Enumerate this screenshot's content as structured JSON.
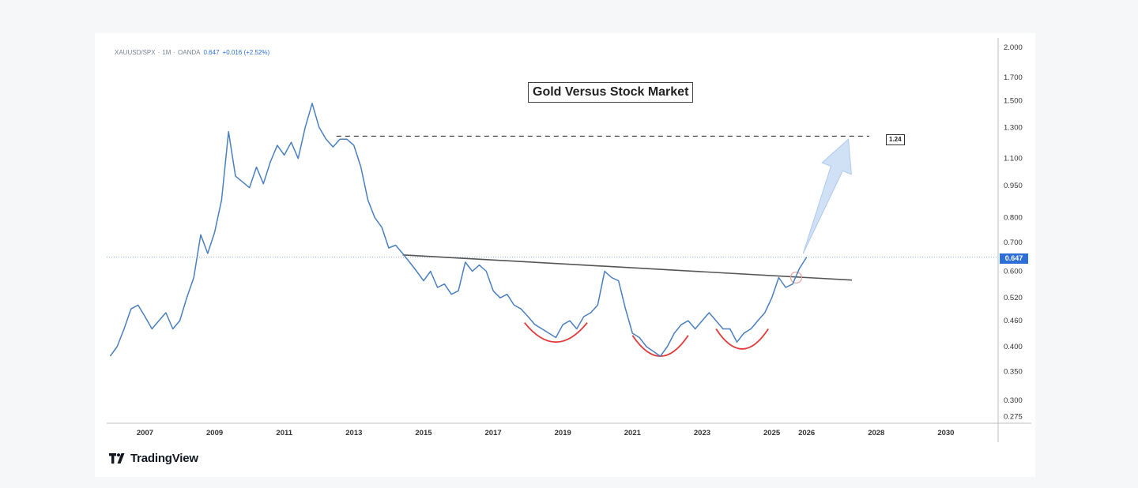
{
  "header": {
    "symbol": "XAUUSD/SPX",
    "interval": "1M",
    "source": "OANDA",
    "value": "0.647",
    "change": "+0.016 (+2.52%)"
  },
  "branding": {
    "logo_text": "TradingView",
    "logo_glyph": "17"
  },
  "colors": {
    "line": "#4a7fbd",
    "cups": "#e03a3a",
    "trendline": "#555555",
    "accent": "#2d6fd6",
    "arrow": "#cfe0f5"
  },
  "chart_data": {
    "type": "line",
    "title": "Gold Versus Stock Market",
    "xlabel": "",
    "ylabel": "",
    "scale": "log",
    "ylim": [
      0.265,
      2.05
    ],
    "xlim": [
      2005.9,
      2031.5
    ],
    "x_ticks": [
      "2007",
      "2009",
      "2011",
      "2013",
      "2015",
      "2017",
      "2019",
      "2021",
      "2023",
      "2025",
      "2026",
      "2028",
      "2030"
    ],
    "x_tick_values": [
      2007,
      2009,
      2011,
      2013,
      2015,
      2017,
      2019,
      2021,
      2023,
      2025,
      2026,
      2028,
      2030
    ],
    "y_ticks": [
      "2.000",
      "1.700",
      "1.500",
      "1.300",
      "1.100",
      "0.950",
      "0.800",
      "0.700",
      "0.600",
      "0.520",
      "0.460",
      "0.400",
      "0.350",
      "0.300",
      "0.275"
    ],
    "y_tick_values": [
      2.0,
      1.7,
      1.5,
      1.3,
      1.1,
      0.95,
      0.8,
      0.7,
      0.6,
      0.52,
      0.46,
      0.4,
      0.35,
      0.3,
      0.275
    ],
    "last_price": {
      "value": 0.647,
      "label": "0.647"
    },
    "target": {
      "value": 1.24,
      "label": "1.24",
      "x_start": 2012.5,
      "x_end": 2027.8
    },
    "trendline": {
      "x": [
        2014.4,
        2027.3
      ],
      "y": [
        0.655,
        0.572
      ]
    },
    "projection_arrow": {
      "from": [
        2025.9,
        0.66
      ],
      "to": [
        2027.2,
        1.22
      ]
    },
    "breakout_marker": {
      "x": 2025.7,
      "y": 0.58
    },
    "cups": [
      {
        "x_start": 2017.9,
        "x_end": 2019.7,
        "bottom": 0.41,
        "rim": 0.455
      },
      {
        "x_start": 2021.0,
        "x_end": 2022.6,
        "bottom": 0.38,
        "rim": 0.425
      },
      {
        "x_start": 2023.4,
        "x_end": 2024.9,
        "bottom": 0.395,
        "rim": 0.44
      }
    ],
    "series": [
      {
        "name": "XAUUSD/SPX",
        "x": [
          2006.0,
          2006.2,
          2006.4,
          2006.6,
          2006.8,
          2007.0,
          2007.2,
          2007.4,
          2007.6,
          2007.8,
          2008.0,
          2008.2,
          2008.4,
          2008.6,
          2008.8,
          2009.0,
          2009.2,
          2009.4,
          2009.6,
          2009.8,
          2010.0,
          2010.2,
          2010.4,
          2010.6,
          2010.8,
          2011.0,
          2011.2,
          2011.4,
          2011.6,
          2011.8,
          2012.0,
          2012.2,
          2012.4,
          2012.6,
          2012.8,
          2013.0,
          2013.2,
          2013.4,
          2013.6,
          2013.8,
          2014.0,
          2014.2,
          2014.4,
          2014.6,
          2014.8,
          2015.0,
          2015.2,
          2015.4,
          2015.6,
          2015.8,
          2016.0,
          2016.2,
          2016.4,
          2016.6,
          2016.8,
          2017.0,
          2017.2,
          2017.4,
          2017.6,
          2017.8,
          2018.0,
          2018.2,
          2018.4,
          2018.6,
          2018.8,
          2019.0,
          2019.2,
          2019.4,
          2019.6,
          2019.8,
          2020.0,
          2020.2,
          2020.4,
          2020.6,
          2020.8,
          2021.0,
          2021.2,
          2021.4,
          2021.6,
          2021.8,
          2022.0,
          2022.2,
          2022.4,
          2022.6,
          2022.8,
          2023.0,
          2023.2,
          2023.4,
          2023.6,
          2023.8,
          2024.0,
          2024.2,
          2024.4,
          2024.6,
          2024.8,
          2025.0,
          2025.2,
          2025.4,
          2025.6,
          2025.8,
          2026.0
        ],
        "y": [
          0.38,
          0.4,
          0.44,
          0.49,
          0.5,
          0.47,
          0.44,
          0.46,
          0.48,
          0.44,
          0.46,
          0.52,
          0.58,
          0.73,
          0.66,
          0.74,
          0.88,
          1.27,
          1.0,
          0.97,
          0.94,
          1.05,
          0.96,
          1.08,
          1.18,
          1.12,
          1.2,
          1.1,
          1.3,
          1.48,
          1.3,
          1.22,
          1.17,
          1.22,
          1.22,
          1.18,
          1.05,
          0.88,
          0.8,
          0.76,
          0.68,
          0.69,
          0.66,
          0.63,
          0.6,
          0.57,
          0.6,
          0.55,
          0.56,
          0.53,
          0.54,
          0.63,
          0.6,
          0.62,
          0.6,
          0.54,
          0.52,
          0.53,
          0.5,
          0.49,
          0.47,
          0.45,
          0.44,
          0.43,
          0.42,
          0.45,
          0.46,
          0.44,
          0.47,
          0.48,
          0.5,
          0.6,
          0.58,
          0.57,
          0.49,
          0.43,
          0.42,
          0.4,
          0.39,
          0.38,
          0.4,
          0.43,
          0.45,
          0.46,
          0.44,
          0.46,
          0.48,
          0.46,
          0.44,
          0.44,
          0.41,
          0.43,
          0.44,
          0.46,
          0.48,
          0.52,
          0.58,
          0.55,
          0.56,
          0.61,
          0.647
        ]
      }
    ]
  }
}
